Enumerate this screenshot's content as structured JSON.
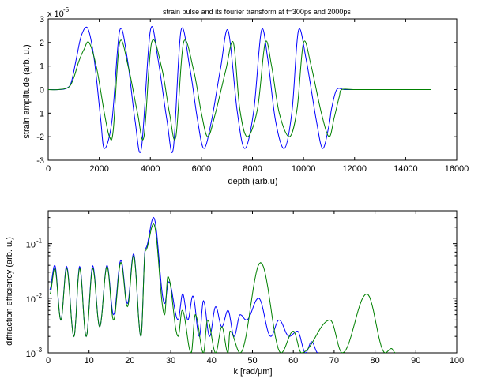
{
  "figure": {
    "title": "strain pulse and its fourier transform at t=300ps and 2000ps"
  },
  "chart_data": [
    {
      "type": "line",
      "title": "strain pulse and its fourier transform at t=300ps and 2000ps",
      "xlabel": "depth (arb.u)",
      "ylabel": "strain amplitude (arb. u.)",
      "ylabel_exponent": "x 10",
      "ylabel_exponent_power": "-5",
      "xlim": [
        0,
        16000
      ],
      "ylim": [
        -3,
        3
      ],
      "xticks": [
        0,
        2000,
        4000,
        6000,
        8000,
        10000,
        12000,
        14000,
        16000
      ],
      "xtick_labels": [
        "0",
        "2000",
        "4000",
        "6000",
        "8000",
        "10000",
        "12000",
        "14000",
        "16000"
      ],
      "yticks": [
        -3,
        -2,
        -1,
        0,
        1,
        2,
        3
      ],
      "ytick_labels": [
        "-3",
        "-2",
        "-1",
        "0",
        "1",
        "2",
        "3"
      ],
      "grid": false,
      "series": [
        {
          "color": "#0000ff",
          "x": [
            0,
            400,
            700,
            900,
            1100,
            1300,
            1550,
            1800,
            2050,
            2200,
            2500,
            2800,
            3100,
            3400,
            3650,
            4000,
            4300,
            4650,
            4900,
            5200,
            5550,
            5850,
            6100,
            6400,
            6750,
            7050,
            7400,
            7700,
            8050,
            8350,
            8600,
            8900,
            9250,
            9550,
            9800,
            10100,
            10500,
            10750,
            11000,
            11100,
            11300,
            11600,
            12000,
            13000,
            15000
          ],
          "y": [
            0,
            0,
            0.05,
            0.3,
            1.3,
            2.3,
            2.6,
            1.3,
            -1.2,
            -2.5,
            -1.3,
            2.5,
            1.3,
            -1.3,
            -2.5,
            2.5,
            1.3,
            -1.3,
            -2.5,
            2.5,
            0.9,
            -1.3,
            -2.5,
            -1.3,
            0.9,
            2.5,
            -0.9,
            -2.5,
            -0.9,
            2.5,
            1.3,
            -1.3,
            -2.5,
            -0.9,
            2.5,
            1.3,
            -1.3,
            -2.5,
            -1.5,
            -0.8,
            0,
            0,
            0,
            0,
            0
          ]
        },
        {
          "color": "#008000",
          "x": [
            0,
            400,
            800,
            1000,
            1200,
            1400,
            1600,
            1900,
            2200,
            2400,
            2550,
            2800,
            3150,
            3500,
            3750,
            4050,
            4450,
            4750,
            5000,
            5300,
            5700,
            6000,
            6250,
            6550,
            6950,
            7250,
            7500,
            7800,
            8200,
            8500,
            8750,
            9050,
            9450,
            9750,
            10000,
            10300,
            10700,
            11000,
            11200,
            11400,
            11500,
            12000,
            13000,
            15000
          ],
          "y": [
            0,
            0,
            0.1,
            0.5,
            1.2,
            1.7,
            2.0,
            0.9,
            -1.0,
            -2.0,
            -1.7,
            2.0,
            0.9,
            -1.0,
            -2.0,
            2.0,
            0.9,
            -1.0,
            -2.0,
            2.0,
            0.8,
            -1.0,
            -2.0,
            -1.0,
            0.8,
            2.0,
            -0.8,
            -2.0,
            -0.8,
            2.0,
            1.0,
            -1.0,
            -2.0,
            -0.8,
            2.0,
            1.0,
            -1.0,
            -2.0,
            -1.2,
            -0.3,
            0,
            0,
            0,
            0
          ]
        }
      ]
    },
    {
      "type": "line",
      "title": "",
      "xlabel": "k [rad/µm]",
      "ylabel": "diffraction efficiency (arb. u.)",
      "xlim": [
        0,
        100
      ],
      "ylim": [
        0.001,
        0.4
      ],
      "yscale": "log",
      "xticks": [
        0,
        10,
        20,
        30,
        40,
        50,
        60,
        70,
        80,
        90,
        100
      ],
      "xtick_labels": [
        "0",
        "10",
        "20",
        "30",
        "40",
        "50",
        "60",
        "70",
        "80",
        "90",
        "100"
      ],
      "ytick_values": [
        0.1,
        0.01,
        0.001
      ],
      "ytick_base": "10",
      "ytick_powers": [
        "-1",
        "-2",
        "-3"
      ],
      "grid": false,
      "series": [
        {
          "color": "#0000ff",
          "peaks": [
            [
              0.3,
              0.014
            ],
            [
              1.6,
              0.04
            ],
            [
              3.1,
              0.004
            ],
            [
              4.5,
              0.038
            ],
            [
              6.3,
              0.002
            ],
            [
              7.7,
              0.038
            ],
            [
              9.3,
              0.002
            ],
            [
              10.9,
              0.039
            ],
            [
              12.6,
              0.003
            ],
            [
              14.4,
              0.04
            ],
            [
              16.0,
              0.005
            ],
            [
              17.8,
              0.05
            ],
            [
              19.4,
              0.008
            ],
            [
              20.9,
              0.065
            ],
            [
              22.7,
              0.002
            ],
            [
              23.8,
              0.082
            ],
            [
              25.8,
              0.3
            ],
            [
              28.5,
              0.008
            ],
            [
              29.5,
              0.02
            ],
            [
              31.8,
              0.004
            ],
            [
              32.9,
              0.012
            ],
            [
              34.2,
              0.004
            ],
            [
              35.4,
              0.011
            ],
            [
              37.0,
              0.002
            ],
            [
              38.0,
              0.009
            ],
            [
              39.5,
              0.002
            ],
            [
              41.0,
              0.007
            ],
            [
              42.5,
              0.003
            ],
            [
              44.0,
              0.006
            ],
            [
              45.5,
              0.002
            ],
            [
              47.0,
              0.005
            ],
            [
              48.5,
              0.004
            ],
            [
              51.5,
              0.01
            ],
            [
              54.5,
              0.002
            ],
            [
              56.5,
              0.004
            ],
            [
              59.0,
              0.002
            ],
            [
              61.0,
              0.0025
            ],
            [
              63.0,
              0.001
            ],
            [
              64.5,
              0.0016
            ],
            [
              66.0,
              0.001
            ]
          ]
        },
        {
          "color": "#008000",
          "peaks": [
            [
              0.4,
              0.012
            ],
            [
              1.6,
              0.035
            ],
            [
              3.1,
              0.004
            ],
            [
              4.5,
              0.035
            ],
            [
              6.3,
              0.002
            ],
            [
              7.7,
              0.035
            ],
            [
              9.3,
              0.002
            ],
            [
              10.9,
              0.035
            ],
            [
              12.6,
              0.003
            ],
            [
              14.4,
              0.038
            ],
            [
              16.0,
              0.004
            ],
            [
              17.8,
              0.045
            ],
            [
              19.4,
              0.007
            ],
            [
              20.9,
              0.06
            ],
            [
              22.7,
              0.002
            ],
            [
              23.8,
              0.075
            ],
            [
              25.8,
              0.23
            ],
            [
              28.5,
              0.005
            ],
            [
              29.3,
              0.025
            ],
            [
              31.8,
              0.002
            ],
            [
              32.8,
              0.006
            ],
            [
              35.0,
              0.001
            ],
            [
              36.0,
              0.005
            ],
            [
              38.0,
              0.001
            ],
            [
              39.0,
              0.004
            ],
            [
              41.0,
              0.001
            ],
            [
              42.5,
              0.003
            ],
            [
              44.0,
              0.001
            ],
            [
              44.5,
              0.0025
            ],
            [
              47.0,
              0.001
            ],
            [
              52.0,
              0.045
            ],
            [
              57.0,
              0.001
            ],
            [
              60.0,
              0.0025
            ],
            [
              62.0,
              0.001
            ],
            [
              69.0,
              0.004
            ],
            [
              72.0,
              0.001
            ],
            [
              78.0,
              0.012
            ],
            [
              82.5,
              0.001
            ],
            [
              84.0,
              0.0012
            ],
            [
              85.0,
              0.001
            ]
          ]
        }
      ]
    }
  ]
}
